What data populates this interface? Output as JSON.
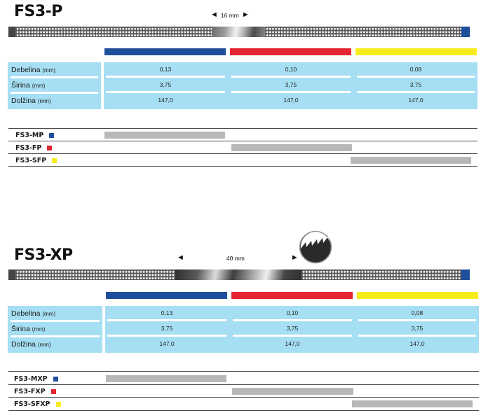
{
  "colors": {
    "blue": "#1f4e9c",
    "red": "#e32630",
    "yellow": "#f6ec1b",
    "table_bg": "#a6dff3",
    "bar_gray": "#b8b8b8"
  },
  "sections": [
    {
      "title": "FS3-P",
      "length_label": "16 mm",
      "rows": [
        {
          "label": "Debelina",
          "unit": "(mm)",
          "values": [
            "0,13",
            "0,10",
            "0,08"
          ]
        },
        {
          "label": "Širina",
          "unit": "(mm)",
          "values": [
            "3,75",
            "3,75",
            "3,75"
          ]
        },
        {
          "label": "Dolžina",
          "unit": "(mm)",
          "values": [
            "147,0",
            "147,0",
            "147,0"
          ]
        }
      ],
      "models": [
        {
          "name": "FS3-MP",
          "color": "blue"
        },
        {
          "name": "FS3-FP",
          "color": "red"
        },
        {
          "name": "FS3-SFP",
          "color": "yellow"
        }
      ]
    },
    {
      "title": "FS3-XP",
      "length_label": "40 mm",
      "rows": [
        {
          "label": "Debelina",
          "unit": "(mm)",
          "values": [
            "0,13",
            "0,10",
            "0,08"
          ]
        },
        {
          "label": "Širina",
          "unit": "(mm)",
          "values": [
            "3,75",
            "3,75",
            "3,75"
          ]
        },
        {
          "label": "Dolžina",
          "unit": "(mm)",
          "values": [
            "147,0",
            "147,0",
            "147,0"
          ]
        }
      ],
      "models": [
        {
          "name": "FS3-MXP",
          "color": "blue"
        },
        {
          "name": "FS3-FXP",
          "color": "red"
        },
        {
          "name": "FS3-SFXP",
          "color": "yellow"
        }
      ]
    }
  ],
  "arrow_icons": {
    "left": "arrow-left-icon",
    "right": "arrow-right-icon"
  },
  "tooth_icon": "serrated-edge-icon"
}
